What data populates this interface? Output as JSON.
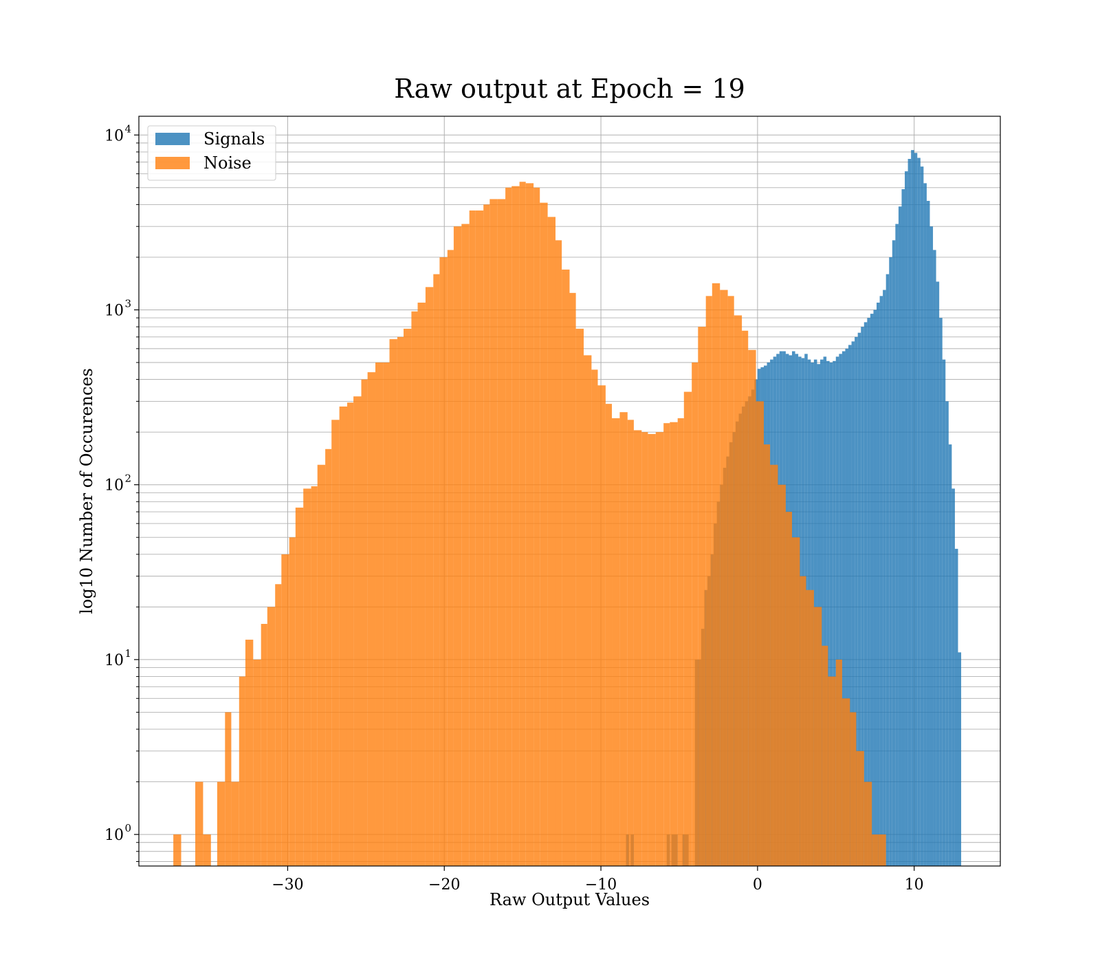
{
  "chart_data": {
    "type": "histogram",
    "title": "Raw output at Epoch = 19",
    "xlabel": "Raw Output Values",
    "ylabel": "log10 Number of Occurences",
    "xlim": [
      -39.5,
      15.5
    ],
    "ylim": [
      0.66,
      12800
    ],
    "yscale": "log",
    "grid": true,
    "legend_placement": "top-left",
    "xticks": [
      {
        "v": -30,
        "label": "−30"
      },
      {
        "v": -20,
        "label": "−20"
      },
      {
        "v": -10,
        "label": "−10"
      },
      {
        "v": 0,
        "label": "0"
      },
      {
        "v": 10,
        "label": "10"
      }
    ],
    "yticks": [
      {
        "v": 1,
        "base": "10",
        "exp": "0"
      },
      {
        "v": 10,
        "base": "10",
        "exp": "1"
      },
      {
        "v": 100,
        "base": "10",
        "exp": "2"
      },
      {
        "v": 1000,
        "base": "10",
        "exp": "3"
      },
      {
        "v": 10000,
        "base": "10",
        "exp": "4"
      }
    ],
    "series": [
      {
        "name": "Signals",
        "color": "#1f77b4",
        "bins": [
          [
            -8.4,
            -8.2,
            1
          ],
          [
            -8.1,
            -7.9,
            1
          ],
          [
            -5.8,
            -5.6,
            1
          ],
          [
            -5.5,
            -5.1,
            1
          ],
          [
            -4.8,
            -4.4,
            1
          ],
          [
            -4.0,
            -3.6,
            10
          ],
          [
            -3.6,
            -3.4,
            15
          ],
          [
            -3.4,
            -3.2,
            25
          ],
          [
            -3.2,
            -3.0,
            30
          ],
          [
            -3.0,
            -2.8,
            40
          ],
          [
            -2.8,
            -2.6,
            60
          ],
          [
            -2.6,
            -2.4,
            80
          ],
          [
            -2.4,
            -2.2,
            100
          ],
          [
            -2.2,
            -2.0,
            125
          ],
          [
            -2.0,
            -1.8,
            145
          ],
          [
            -1.8,
            -1.6,
            175
          ],
          [
            -1.6,
            -1.4,
            200
          ],
          [
            -1.4,
            -1.2,
            230
          ],
          [
            -1.2,
            -1.0,
            255
          ],
          [
            -1.0,
            -0.8,
            280
          ],
          [
            -0.8,
            -0.6,
            300
          ],
          [
            -0.6,
            -0.4,
            320
          ],
          [
            -0.4,
            -0.2,
            350
          ],
          [
            -0.2,
            0.0,
            400
          ],
          [
            0.0,
            0.2,
            460
          ],
          [
            0.2,
            0.4,
            470
          ],
          [
            0.4,
            0.6,
            480
          ],
          [
            0.6,
            0.8,
            500
          ],
          [
            0.8,
            1.0,
            520
          ],
          [
            1.0,
            1.2,
            540
          ],
          [
            1.2,
            1.4,
            560
          ],
          [
            1.4,
            1.6,
            580
          ],
          [
            1.6,
            1.8,
            580
          ],
          [
            1.8,
            2.0,
            560
          ],
          [
            2.0,
            2.2,
            550
          ],
          [
            2.2,
            2.4,
            580
          ],
          [
            2.4,
            2.6,
            560
          ],
          [
            2.6,
            2.8,
            540
          ],
          [
            2.8,
            3.0,
            530
          ],
          [
            3.0,
            3.2,
            560
          ],
          [
            3.2,
            3.4,
            520
          ],
          [
            3.4,
            3.6,
            500
          ],
          [
            3.6,
            3.8,
            520
          ],
          [
            3.8,
            4.0,
            490
          ],
          [
            4.0,
            4.2,
            520
          ],
          [
            4.2,
            4.4,
            540
          ],
          [
            4.4,
            4.6,
            510
          ],
          [
            4.6,
            4.8,
            500
          ],
          [
            4.8,
            5.0,
            510
          ],
          [
            5.0,
            5.2,
            540
          ],
          [
            5.2,
            5.4,
            560
          ],
          [
            5.4,
            5.6,
            580
          ],
          [
            5.6,
            5.8,
            600
          ],
          [
            5.8,
            6.0,
            630
          ],
          [
            6.0,
            6.2,
            660
          ],
          [
            6.2,
            6.4,
            700
          ],
          [
            6.4,
            6.6,
            740
          ],
          [
            6.6,
            6.8,
            800
          ],
          [
            6.8,
            7.0,
            850
          ],
          [
            7.0,
            7.2,
            900
          ],
          [
            7.2,
            7.4,
            950
          ],
          [
            7.4,
            7.6,
            1000
          ],
          [
            7.6,
            7.8,
            1100
          ],
          [
            7.8,
            8.0,
            1200
          ],
          [
            8.0,
            8.2,
            1300
          ],
          [
            8.2,
            8.4,
            1600
          ],
          [
            8.4,
            8.6,
            2000
          ],
          [
            8.6,
            8.8,
            2500
          ],
          [
            8.8,
            9.0,
            3100
          ],
          [
            9.0,
            9.2,
            3900
          ],
          [
            9.2,
            9.4,
            4900
          ],
          [
            9.4,
            9.6,
            6200
          ],
          [
            9.6,
            9.8,
            7300
          ],
          [
            9.8,
            10.0,
            8200
          ],
          [
            10.0,
            10.2,
            7900
          ],
          [
            10.2,
            10.4,
            7400
          ],
          [
            10.4,
            10.6,
            6600
          ],
          [
            10.6,
            10.8,
            5300
          ],
          [
            10.8,
            11.0,
            4200
          ],
          [
            11.0,
            11.2,
            3000
          ],
          [
            11.2,
            11.4,
            2200
          ],
          [
            11.4,
            11.6,
            1450
          ],
          [
            11.6,
            11.8,
            900
          ],
          [
            11.8,
            12.0,
            520
          ],
          [
            12.0,
            12.2,
            300
          ],
          [
            12.2,
            12.4,
            170
          ],
          [
            12.4,
            12.6,
            95
          ],
          [
            12.6,
            12.8,
            43
          ],
          [
            12.8,
            13.0,
            11
          ]
        ]
      },
      {
        "name": "Noise",
        "color": "#ff7f0e",
        "bins": [
          [
            -37.3,
            -36.8,
            1
          ],
          [
            -35.9,
            -35.4,
            2
          ],
          [
            -35.4,
            -34.9,
            1
          ],
          [
            -34.5,
            -34.0,
            2
          ],
          [
            -34.0,
            -33.6,
            5
          ],
          [
            -33.6,
            -33.1,
            2
          ],
          [
            -33.1,
            -32.7,
            8
          ],
          [
            -32.7,
            -32.2,
            13
          ],
          [
            -32.2,
            -31.7,
            10
          ],
          [
            -31.7,
            -31.3,
            16
          ],
          [
            -31.3,
            -30.8,
            20
          ],
          [
            -30.8,
            -30.4,
            27
          ],
          [
            -30.4,
            -29.9,
            40
          ],
          [
            -29.9,
            -29.5,
            50
          ],
          [
            -29.5,
            -29.0,
            74
          ],
          [
            -29.0,
            -28.5,
            95
          ],
          [
            -28.5,
            -28.1,
            98
          ],
          [
            -28.1,
            -27.6,
            130
          ],
          [
            -27.6,
            -27.2,
            160
          ],
          [
            -27.2,
            -26.7,
            235
          ],
          [
            -26.7,
            -26.2,
            280
          ],
          [
            -26.2,
            -25.8,
            295
          ],
          [
            -25.8,
            -25.3,
            320
          ],
          [
            -25.3,
            -24.9,
            400
          ],
          [
            -24.9,
            -24.4,
            440
          ],
          [
            -24.4,
            -23.9,
            500
          ],
          [
            -23.9,
            -23.5,
            500
          ],
          [
            -23.5,
            -23.0,
            680
          ],
          [
            -23.0,
            -22.6,
            700
          ],
          [
            -22.6,
            -22.1,
            780
          ],
          [
            -22.1,
            -21.7,
            980
          ],
          [
            -21.7,
            -21.2,
            1100
          ],
          [
            -21.2,
            -20.7,
            1350
          ],
          [
            -20.7,
            -20.3,
            1600
          ],
          [
            -20.3,
            -19.8,
            2000
          ],
          [
            -19.8,
            -19.4,
            2200
          ],
          [
            -19.4,
            -18.9,
            3000
          ],
          [
            -18.9,
            -18.4,
            3100
          ],
          [
            -18.4,
            -18.0,
            3700
          ],
          [
            -18.0,
            -17.5,
            3700
          ],
          [
            -17.5,
            -17.1,
            4000
          ],
          [
            -17.1,
            -16.6,
            4300
          ],
          [
            -16.6,
            -16.1,
            4300
          ],
          [
            -16.1,
            -15.7,
            5000
          ],
          [
            -15.7,
            -15.2,
            5100
          ],
          [
            -15.2,
            -14.8,
            5400
          ],
          [
            -14.8,
            -14.3,
            5300
          ],
          [
            -14.3,
            -13.9,
            5000
          ],
          [
            -13.9,
            -13.4,
            4100
          ],
          [
            -13.4,
            -12.9,
            3400
          ],
          [
            -12.9,
            -12.5,
            2500
          ],
          [
            -12.5,
            -12.0,
            1700
          ],
          [
            -12.0,
            -11.6,
            1250
          ],
          [
            -11.6,
            -11.1,
            780
          ],
          [
            -11.1,
            -10.6,
            550
          ],
          [
            -10.6,
            -10.2,
            455
          ],
          [
            -10.2,
            -9.7,
            370
          ],
          [
            -9.7,
            -9.3,
            290
          ],
          [
            -9.3,
            -8.8,
            240
          ],
          [
            -8.8,
            -8.3,
            260
          ],
          [
            -8.3,
            -7.9,
            235
          ],
          [
            -7.9,
            -7.4,
            205
          ],
          [
            -7.4,
            -7.0,
            200
          ],
          [
            -7.0,
            -6.5,
            195
          ],
          [
            -6.5,
            -6.0,
            200
          ],
          [
            -6.0,
            -5.6,
            225
          ],
          [
            -5.6,
            -5.1,
            228
          ],
          [
            -5.1,
            -4.7,
            240
          ],
          [
            -4.7,
            -4.2,
            340
          ],
          [
            -4.2,
            -3.8,
            500
          ],
          [
            -3.8,
            -3.3,
            800
          ],
          [
            -3.3,
            -2.9,
            1200
          ],
          [
            -2.9,
            -2.4,
            1420
          ],
          [
            -2.4,
            -1.9,
            1300
          ],
          [
            -1.9,
            -1.5,
            1200
          ],
          [
            -1.5,
            -1.0,
            930
          ],
          [
            -1.0,
            -0.6,
            760
          ],
          [
            -0.6,
            -0.1,
            590
          ],
          [
            -0.1,
            0.4,
            300
          ],
          [
            0.4,
            0.8,
            170
          ],
          [
            0.8,
            1.3,
            130
          ],
          [
            1.3,
            1.8,
            100
          ],
          [
            1.8,
            2.2,
            70
          ],
          [
            2.2,
            2.7,
            50
          ],
          [
            2.7,
            3.1,
            30
          ],
          [
            3.1,
            3.6,
            25
          ],
          [
            3.6,
            4.1,
            20
          ],
          [
            4.1,
            4.5,
            12
          ],
          [
            4.5,
            5.0,
            8
          ],
          [
            5.0,
            5.4,
            10
          ],
          [
            5.4,
            5.9,
            6
          ],
          [
            5.9,
            6.3,
            5
          ],
          [
            6.3,
            6.8,
            3
          ],
          [
            6.8,
            7.3,
            2
          ],
          [
            7.3,
            7.7,
            1
          ],
          [
            7.7,
            8.2,
            1
          ]
        ]
      }
    ]
  }
}
